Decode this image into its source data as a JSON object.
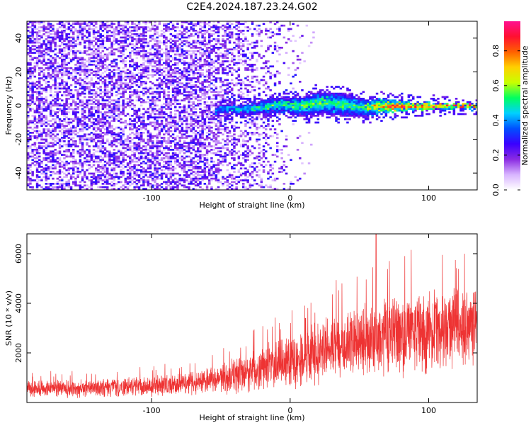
{
  "title": "C2E4.2024.187.23.24.G02",
  "chart_data": [
    {
      "type": "heatmap",
      "xlabel": "Height of straight line (km)",
      "ylabel": "Frequency (Hz)",
      "xlim": [
        -190,
        135
      ],
      "ylim": [
        -50,
        50
      ],
      "xticks": [
        -100,
        0,
        100
      ],
      "yticks": [
        -40,
        -20,
        0,
        20,
        40
      ],
      "xtick_labels": [
        "-100",
        "0",
        "100"
      ],
      "ytick_labels": [
        "-40",
        "-20",
        "0",
        "20",
        "40"
      ],
      "grid": false,
      "colorbar": {
        "label": "Normalized spectral amplitude",
        "range": [
          0,
          0.97
        ],
        "ticks": [
          0.0,
          0.2,
          0.4,
          0.6,
          0.8
        ],
        "tick_labels": [
          "0.0",
          "0.2",
          "0.4",
          "0.6",
          "0.8"
        ],
        "colormap": [
          "#ffffff",
          "#d8b4ff",
          "#8a2be2",
          "#3a00ff",
          "#0050ff",
          "#00d0ff",
          "#00ff60",
          "#c8ff00",
          "#ffd000",
          "#ff6000",
          "#ff1030",
          "#ff1090"
        ]
      },
      "signal_band": {
        "x_start": -55,
        "x_end": 135,
        "center_hz": [
          [
            -55,
            -3
          ],
          [
            -45,
            -1
          ],
          [
            -35,
            -2
          ],
          [
            -25,
            -1
          ],
          [
            -15,
            0
          ],
          [
            -5,
            1
          ],
          [
            5,
            0
          ],
          [
            15,
            1
          ],
          [
            25,
            2
          ],
          [
            35,
            1
          ],
          [
            45,
            0
          ],
          [
            55,
            -1
          ],
          [
            65,
            0
          ],
          [
            75,
            0
          ],
          [
            85,
            0
          ],
          [
            95,
            0
          ],
          [
            105,
            0
          ],
          [
            115,
            0
          ],
          [
            125,
            0
          ],
          [
            135,
            0
          ]
        ],
        "halfwidth_hz": [
          [
            -55,
            3
          ],
          [
            -40,
            3
          ],
          [
            -20,
            4
          ],
          [
            0,
            5
          ],
          [
            20,
            7
          ],
          [
            40,
            7
          ],
          [
            60,
            5
          ],
          [
            80,
            3
          ],
          [
            100,
            2
          ],
          [
            120,
            1.5
          ],
          [
            135,
            1.5
          ]
        ],
        "peak_amplitude": [
          [
            -55,
            0.45
          ],
          [
            -30,
            0.55
          ],
          [
            -10,
            0.6
          ],
          [
            10,
            0.6
          ],
          [
            30,
            0.6
          ],
          [
            50,
            0.55
          ],
          [
            70,
            0.9
          ],
          [
            100,
            0.95
          ],
          [
            135,
            0.95
          ]
        ]
      },
      "noise_region": {
        "x_start": -190,
        "x_end": 10,
        "level": 0.2
      }
    },
    {
      "type": "line",
      "xlabel": "Height of straight line (km)",
      "ylabel": "SNR (10 * v/v)",
      "xlim": [
        -190,
        135
      ],
      "ylim": [
        0,
        6800
      ],
      "xticks": [
        -100,
        0,
        100
      ],
      "yticks": [
        2000,
        4000,
        6000
      ],
      "xtick_labels": [
        "-100",
        "0",
        "100"
      ],
      "ytick_labels": [
        "2000",
        "4000",
        "6000"
      ],
      "grid": false,
      "series": [
        {
          "color": "#ee3333",
          "envelope": {
            "x": [
              -190,
              -160,
              -130,
              -100,
              -70,
              -50,
              -30,
              -10,
              10,
              30,
              50,
              70,
              90,
              110,
              135
            ],
            "mean": [
              550,
              550,
              600,
              650,
              800,
              950,
              1200,
              1500,
              1800,
              2200,
              2500,
              2700,
              2900,
              3000,
              3100
            ],
            "amplitude": [
              400,
              400,
              450,
              450,
              550,
              700,
              900,
              1100,
              1300,
              1500,
              1700,
              1900,
              1900,
              1800,
              1700
            ]
          },
          "peak": {
            "x": 62,
            "y": 6800
          }
        }
      ]
    }
  ]
}
